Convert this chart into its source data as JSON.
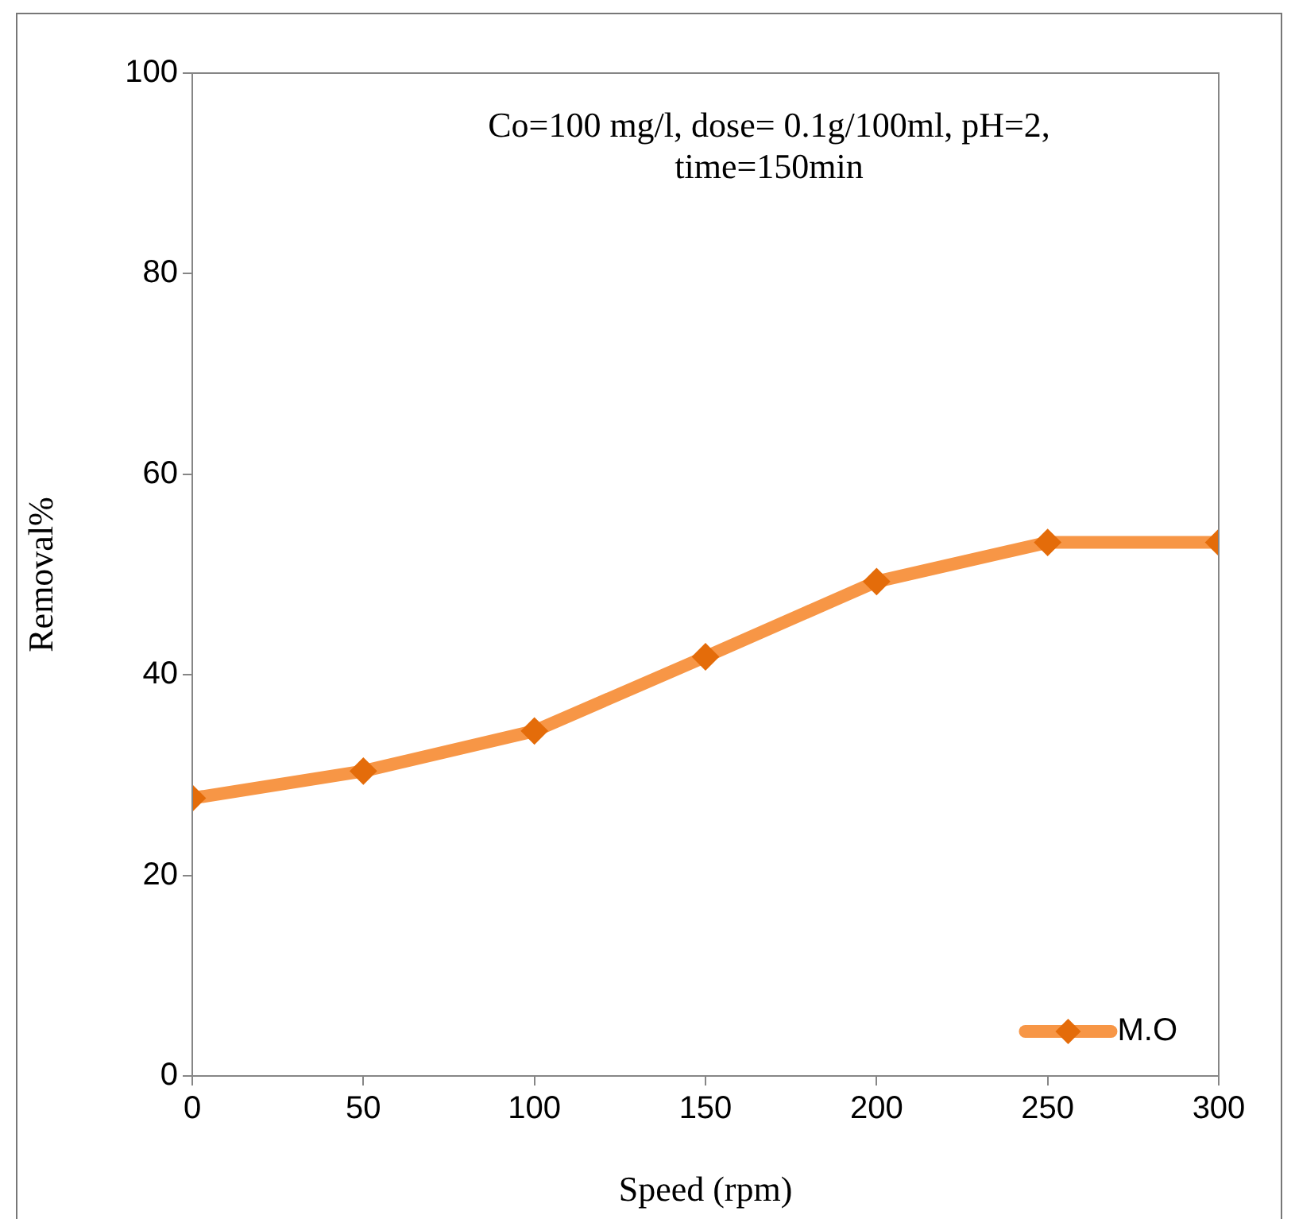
{
  "chart_data": {
    "type": "line",
    "xlabel": "Speed (rpm)",
    "ylabel": "Removal%",
    "annotations": [
      "Co=100 mg/l, dose= 0.1g/100ml, pH=2, time=150min"
    ],
    "x": [
      0,
      50,
      100,
      150,
      200,
      250,
      300
    ],
    "series": [
      {
        "name": "M.O",
        "color": "#f79646",
        "values": [
          27.7,
          30.4,
          34.4,
          41.8,
          49.3,
          53.2,
          53.2
        ]
      }
    ],
    "xlim": [
      0,
      300
    ],
    "xticks": [
      0,
      50,
      100,
      150,
      200,
      250,
      300
    ],
    "ylim": [
      0,
      100
    ],
    "yticks": [
      0,
      20,
      40,
      60,
      80,
      100
    ],
    "grid": false,
    "legend": "bottom right",
    "marker": "diamond",
    "line_style": "solid"
  }
}
